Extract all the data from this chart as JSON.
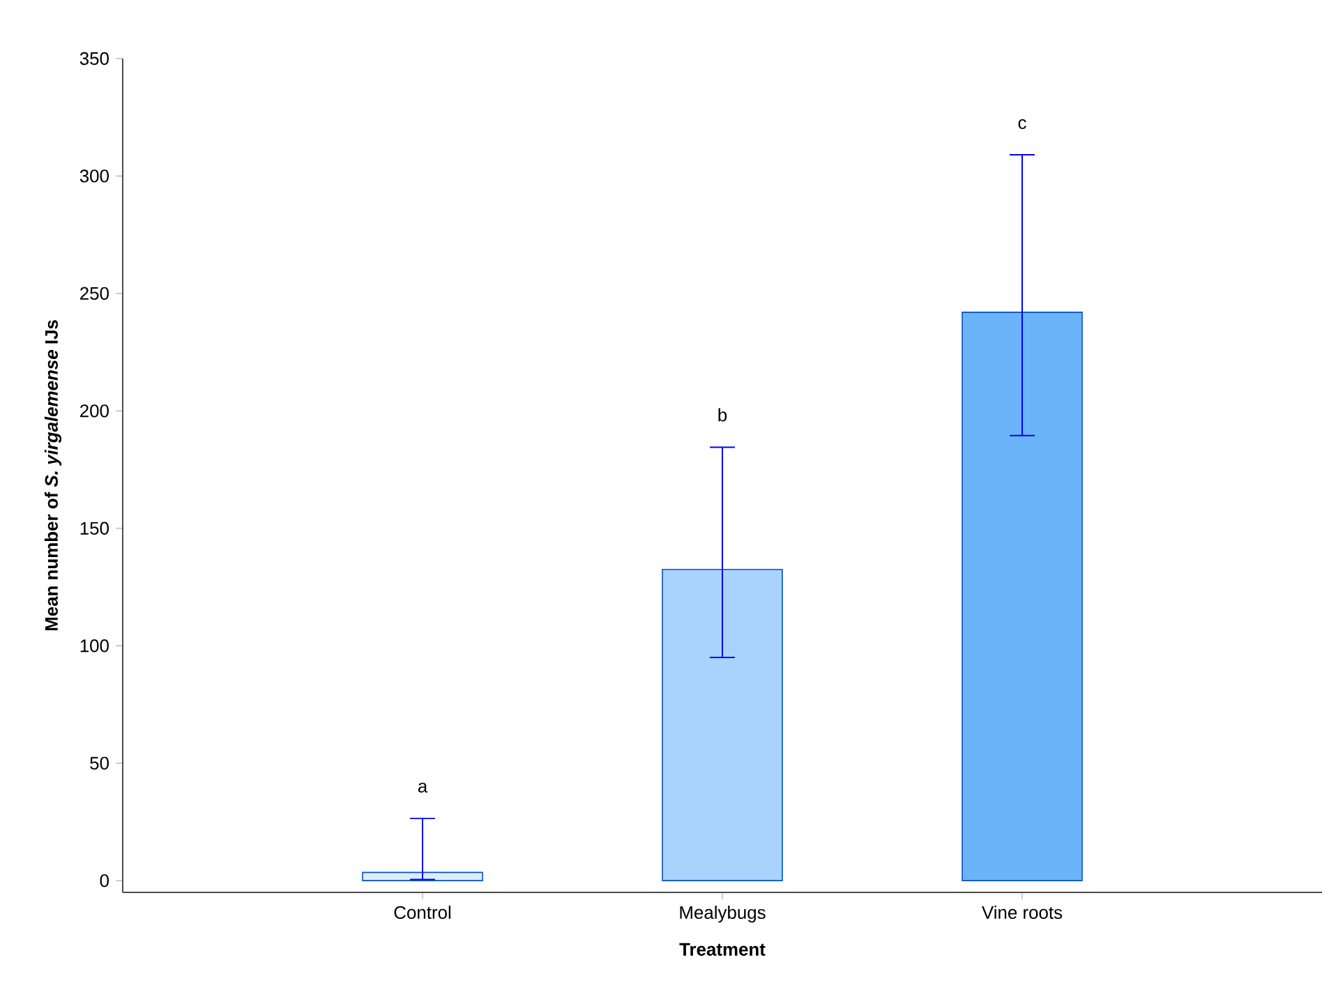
{
  "chart_data": {
    "type": "bar",
    "xlabel": "Treatment",
    "ylabel": "**Mean number of *S. yirgalemense* IJs**",
    "categories": [
      "Control",
      "Mealybugs",
      "Vine roots"
    ],
    "values": [
      3.5,
      132.5,
      242
    ],
    "errors": [
      [
        0.5,
        26.5
      ],
      [
        95,
        184.5
      ],
      [
        189.5,
        309
      ]
    ],
    "colors": [
      "#deedfc",
      "#a9d2fc",
      "#6cb4fa"
    ],
    "ylim": [
      -5,
      350
    ],
    "yticks": [
      0,
      50,
      100,
      150,
      200,
      250,
      300,
      350
    ],
    "annotations": [
      "a",
      "b",
      "c"
    ]
  }
}
